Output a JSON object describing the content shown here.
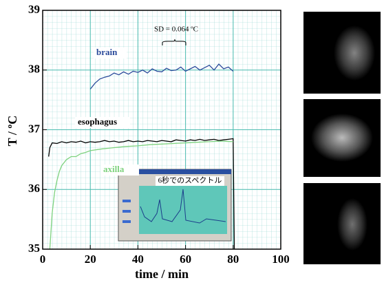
{
  "chart_data": {
    "type": "line",
    "xlabel": "time / min",
    "ylabel": "T / ºC",
    "xlim": [
      0,
      100
    ],
    "ylim": [
      35,
      39
    ],
    "xticks": [
      0,
      20,
      40,
      60,
      80,
      100
    ],
    "yticks": [
      35,
      36,
      37,
      38,
      39
    ],
    "grid": true,
    "annotations": [
      "SD = 0.064 ºC",
      "6秒でのスペクトル"
    ],
    "series": [
      {
        "name": "brain",
        "color": "#2a4a9a",
        "x": [
          20,
          22,
          24,
          26,
          28,
          30,
          32,
          34,
          36,
          38,
          40,
          42,
          44,
          46,
          48,
          50,
          52,
          54,
          56,
          58,
          60,
          62,
          64,
          66,
          68,
          70,
          72,
          74,
          76,
          78,
          80
        ],
        "values": [
          37.68,
          37.78,
          37.85,
          37.88,
          37.9,
          37.95,
          37.92,
          37.97,
          37.93,
          37.98,
          37.96,
          38.0,
          37.95,
          38.02,
          37.98,
          37.97,
          38.03,
          37.99,
          38.0,
          38.05,
          37.98,
          38.02,
          38.06,
          38.0,
          38.04,
          38.08,
          38.0,
          38.1,
          38.02,
          38.05,
          37.98
        ]
      },
      {
        "name": "esophagus",
        "color": "#000000",
        "x": [
          2.5,
          3,
          4,
          6,
          8,
          10,
          12,
          14,
          16,
          18,
          20,
          22,
          24,
          26,
          28,
          30,
          32,
          34,
          36,
          38,
          40,
          42,
          44,
          46,
          48,
          50,
          52,
          54,
          56,
          58,
          60,
          62,
          64,
          66,
          68,
          70,
          72,
          74,
          76,
          78,
          80,
          80.5
        ],
        "values": [
          36.55,
          36.7,
          36.78,
          36.77,
          36.8,
          36.78,
          36.8,
          36.79,
          36.81,
          36.78,
          36.8,
          36.79,
          36.8,
          36.82,
          36.8,
          36.81,
          36.79,
          36.8,
          36.82,
          36.8,
          36.81,
          36.8,
          36.82,
          36.81,
          36.8,
          36.82,
          36.81,
          36.8,
          36.83,
          36.82,
          36.81,
          36.83,
          36.82,
          36.84,
          36.82,
          36.83,
          36.84,
          36.82,
          36.83,
          36.84,
          36.85,
          35.0
        ]
      },
      {
        "name": "axilla",
        "color": "#7ed27e",
        "x": [
          3,
          4,
          5,
          6,
          7,
          8,
          10,
          12,
          14,
          16,
          18,
          20,
          25,
          30,
          35,
          40,
          45,
          50,
          55,
          60,
          65,
          70,
          75,
          80
        ],
        "values": [
          35.0,
          35.6,
          35.95,
          36.15,
          36.3,
          36.4,
          36.5,
          36.55,
          36.55,
          36.6,
          36.62,
          36.65,
          36.68,
          36.7,
          36.72,
          36.73,
          36.75,
          36.76,
          36.77,
          36.78,
          36.79,
          36.8,
          36.81,
          36.8
        ]
      }
    ]
  }
}
